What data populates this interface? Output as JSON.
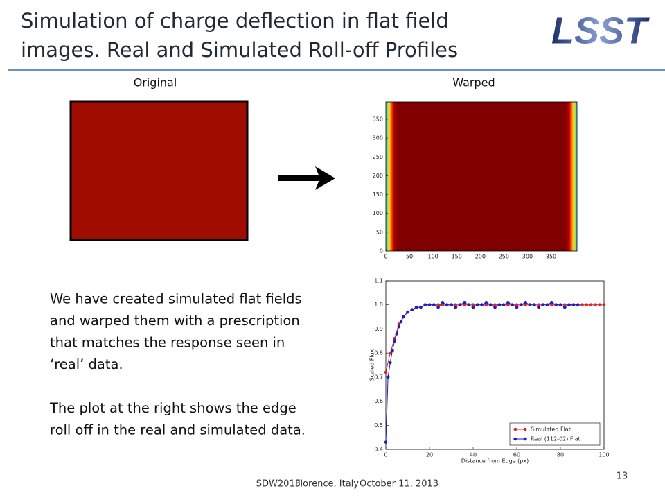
{
  "title_lines": [
    "Simulation of charge deflection in flat field",
    "images. Real and Simulated Roll-off Profiles"
  ],
  "logo": "LSST",
  "panel_labels": {
    "original": "Original",
    "warped": "Warped"
  },
  "body_lines": [
    "We have created simulated flat fields",
    "and warped them with a prescription",
    "that matches the response seen in",
    "‘real’ data.",
    "",
    "The plot at the right shows the edge",
    "roll off in the real and simulated data."
  ],
  "footer": [
    "SDW2013",
    "Florence, Italy",
    "October 11, 2013"
  ],
  "page_number": "13",
  "chart_data": [
    {
      "type": "image",
      "xlim": [
        0,
        405
      ],
      "ylim": [
        0,
        396
      ],
      "xticks": [
        0,
        50,
        100,
        150,
        200,
        250,
        300,
        350
      ],
      "yticks": [
        0,
        50,
        100,
        150,
        200,
        250,
        300,
        350
      ]
    },
    {
      "type": "line",
      "xlabel": "Distance from Edge (px)",
      "ylabel": "Scaled Flux",
      "xlim": [
        0,
        100
      ],
      "ylim": [
        0.4,
        1.1
      ],
      "xticks": [
        0,
        20,
        40,
        60,
        80,
        100
      ],
      "yticks": [
        0.4,
        0.5,
        0.6,
        0.7,
        0.8,
        0.9,
        {
          "value": 1,
          "label": "1.0"
        },
        {
          "value": 1.1,
          "label": "1.1"
        }
      ],
      "legend": "lower right",
      "series": [
        {
          "name": "Simulated Flat",
          "color": "#d62728",
          "x": [
            0,
            2,
            4,
            6,
            8,
            10,
            12,
            14,
            16,
            18,
            20,
            22,
            24,
            26,
            28,
            30,
            32,
            34,
            36,
            38,
            40,
            42,
            44,
            46,
            48,
            50,
            52,
            54,
            56,
            58,
            60,
            62,
            64,
            66,
            68,
            70,
            72,
            74,
            76,
            78,
            80,
            82,
            84,
            86,
            88,
            90,
            92,
            94,
            96,
            98,
            100
          ],
          "values": [
            0.72,
            0.8,
            0.86,
            0.92,
            0.95,
            0.97,
            0.98,
            0.99,
            0.99,
            1,
            1,
            1,
            1,
            1,
            1,
            1,
            1,
            1,
            1,
            1,
            1,
            1,
            1,
            1,
            1,
            1,
            1,
            1,
            1,
            1,
            1,
            1,
            1,
            1,
            1,
            1,
            1,
            1,
            1,
            1,
            1,
            1,
            1,
            1,
            1,
            1,
            1,
            1,
            1,
            1,
            1
          ]
        },
        {
          "name": "Real (112-02) Flat",
          "color": "#1f1fbf",
          "x": [
            0,
            1,
            2,
            3,
            4,
            5,
            6,
            7,
            8,
            10,
            12,
            14,
            16,
            18,
            20,
            22,
            24,
            26,
            28,
            30,
            32,
            34,
            36,
            38,
            40,
            42,
            44,
            46,
            48,
            50,
            52,
            54,
            56,
            58,
            60,
            62,
            64,
            66,
            68,
            70,
            72,
            74,
            76,
            78,
            80,
            82,
            84,
            86,
            88
          ],
          "values": [
            0.43,
            0.7,
            0.76,
            0.81,
            0.85,
            0.88,
            0.91,
            0.93,
            0.95,
            0.97,
            0.98,
            0.99,
            0.99,
            1,
            1,
            1,
            0.99,
            1.01,
            1,
            1,
            0.99,
            1,
            1.01,
            1,
            0.99,
            1,
            1,
            1.01,
            1,
            0.99,
            1,
            1,
            1.01,
            1,
            0.99,
            1,
            1.01,
            1,
            1,
            0.99,
            1,
            1,
            1.01,
            1,
            1,
            0.99,
            1,
            1,
            1
          ]
        }
      ]
    }
  ]
}
